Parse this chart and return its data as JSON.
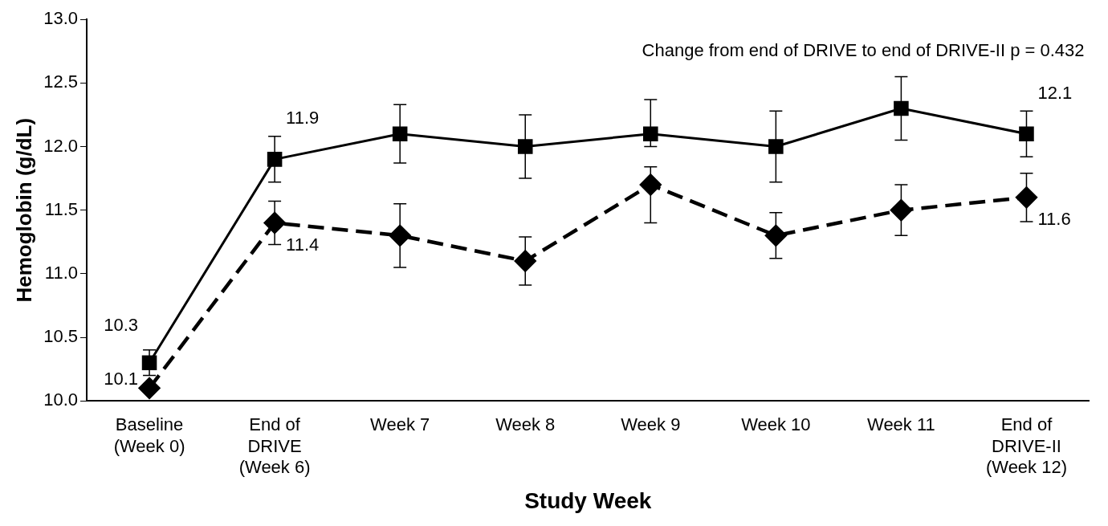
{
  "chart_data": {
    "type": "line",
    "xlabel": "Study Week",
    "ylabel": "Hemoglobin (g/dL)",
    "categories": [
      "Baseline\n(Week 0)",
      "End of\nDRIVE\n(Week 6)",
      "Week 7",
      "Week 8",
      "Week 9",
      "Week 10",
      "Week 11",
      "End of\nDRIVE-II\n(Week 12)"
    ],
    "ylim": [
      10,
      13
    ],
    "yticks": [
      {
        "value": 10,
        "label": "10.0"
      },
      {
        "value": 10.5,
        "label": "10.5"
      },
      {
        "value": 11,
        "label": "11.0"
      },
      {
        "value": 11.5,
        "label": "11.5"
      },
      {
        "value": 12,
        "label": "12.0"
      },
      {
        "value": 12.5,
        "label": "12.5"
      },
      {
        "value": 13,
        "label": "13.0"
      }
    ],
    "grid": false,
    "legend": false,
    "series": [
      {
        "color": "#000000",
        "marker": "square",
        "line_style": "solid",
        "values": [
          10.3,
          11.9,
          12.1,
          12.0,
          12.1,
          12.0,
          12.3,
          12.1
        ],
        "errors": [
          0.1,
          0.18,
          0.23,
          0.25,
          [
            12.0,
            12.37
          ],
          0.28,
          0.25,
          0.18
        ],
        "value_labels": [
          "10.3",
          "11.9",
          null,
          null,
          null,
          null,
          null,
          "12.1"
        ]
      },
      {
        "color": "#000000",
        "marker": "diamond",
        "line_style": "dashed",
        "values": [
          10.1,
          11.4,
          11.3,
          11.1,
          11.7,
          11.3,
          11.5,
          11.6
        ],
        "errors": [
          null,
          0.17,
          0.25,
          0.19,
          [
            11.4,
            11.84
          ],
          0.18,
          0.2,
          0.19
        ],
        "value_labels": [
          "10.1",
          "11.4",
          null,
          null,
          null,
          null,
          null,
          "11.6"
        ]
      }
    ],
    "annotations": [
      "Change from end of DRIVE to end of DRIVE-II p = 0.432"
    ]
  }
}
